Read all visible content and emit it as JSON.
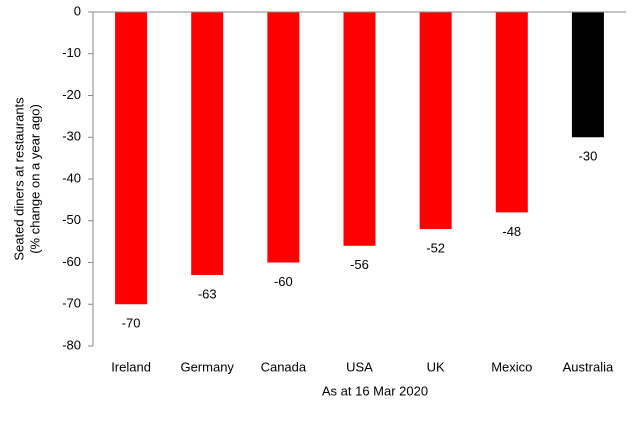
{
  "chart_data": {
    "type": "bar",
    "categories": [
      "Ireland",
      "Germany",
      "Canada",
      "USA",
      "UK",
      "Mexico",
      "Australia"
    ],
    "values": [
      -70,
      -63,
      -60,
      -56,
      -52,
      -48,
      -30
    ],
    "colors": [
      "#ff0000",
      "#ff0000",
      "#ff0000",
      "#ff0000",
      "#ff0000",
      "#ff0000",
      "#000000"
    ],
    "ylim": [
      -80,
      0
    ],
    "yticks": [
      0,
      -10,
      -20,
      -30,
      -40,
      -50,
      -60,
      -70,
      -80
    ],
    "ylabel": [
      "Seated diners at restaurants",
      "(% change on a year ago)"
    ],
    "xlabel": "As at 16 Mar 2020"
  }
}
